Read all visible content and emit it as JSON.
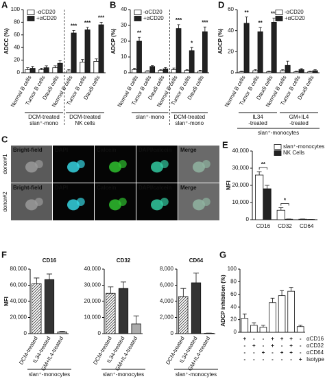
{
  "chart_data": [
    {
      "type": "bar",
      "panel": "A",
      "ylabel": "ADCC (%)",
      "ylim": [
        0,
        100
      ],
      "yticks": [
        0,
        20,
        40,
        60,
        80,
        100
      ],
      "categories": [
        "Normal B cells",
        "Tumor B cells",
        "Daudi cells",
        "Normal B cells",
        "Tumor B cells",
        "Daudi cells"
      ],
      "series": [
        {
          "name": "-αCD20",
          "color": "#ffffff",
          "values": [
            5,
            5,
            8,
            3,
            17,
            18
          ],
          "errors": [
            3,
            2,
            3,
            2,
            4,
            4
          ]
        },
        {
          "name": "+αCD20",
          "color": "#222222",
          "values": [
            7,
            8,
            15,
            63,
            68,
            76
          ],
          "errors": [
            3,
            3,
            4,
            4,
            4,
            4
          ]
        }
      ],
      "significance": [
        null,
        null,
        null,
        "***",
        "***",
        "***"
      ],
      "groups": [
        {
          "label": [
            "DCM-treated",
            "slan⁺-mono"
          ],
          "size": 3
        },
        {
          "label": [
            "DCM-treated",
            "NK cells"
          ],
          "size": 3
        }
      ],
      "separator": true
    },
    {
      "type": "bar",
      "panel": "B",
      "ylabel": "ADCP (%)",
      "ylim": [
        0,
        40
      ],
      "yticks": [
        0,
        10,
        20,
        30,
        40
      ],
      "categories": [
        "Normal B cells",
        "Tumor B cells",
        "Daudi cells",
        "Normal B cells",
        "Tumor B cells",
        "Daudi cells"
      ],
      "series": [
        {
          "name": "-αCD20",
          "color": "#ffffff",
          "values": [
            2,
            1,
            1.5,
            2,
            1.5,
            1
          ],
          "errors": [
            0.8,
            0.3,
            0.5,
            1,
            0.5,
            0.5
          ]
        },
        {
          "name": "+αCD20",
          "color": "#222222",
          "values": [
            20,
            4,
            2.5,
            28,
            14,
            26
          ],
          "errors": [
            2.5,
            0.5,
            0.8,
            2.5,
            2,
            3
          ]
        }
      ],
      "significance": [
        "**",
        null,
        null,
        "***",
        "*",
        "***"
      ],
      "groups": [
        {
          "label": [
            "slan⁺-mono"
          ],
          "size": 3
        },
        {
          "label": [
            "DCM-treated",
            "slan⁺-mono"
          ],
          "size": 3
        }
      ],
      "separator": true
    },
    {
      "type": "bar",
      "panel": "D",
      "ylabel": "ADCP (%)",
      "ylim": [
        0,
        60
      ],
      "yticks": [
        0,
        20,
        40,
        60
      ],
      "categories": [
        "Normal B cells",
        "Tumor B cells",
        "Daudi cells",
        "Normal B cells",
        "Tumor B cells",
        "Daudi cells"
      ],
      "series": [
        {
          "name": "-αCD20",
          "color": "#ffffff",
          "values": [
            1,
            2,
            1,
            2,
            1,
            1
          ],
          "errors": [
            0.5,
            1,
            0.5,
            1,
            0.5,
            0.5
          ]
        },
        {
          "name": "+αCD20",
          "color": "#222222",
          "values": [
            47,
            39,
            48,
            7,
            3,
            2
          ],
          "errors": [
            6,
            4,
            4,
            4,
            1,
            1
          ]
        }
      ],
      "significance": [
        "**",
        "**",
        "***",
        null,
        null,
        null
      ],
      "groups": [
        {
          "label": [
            "IL34",
            "-treated"
          ],
          "size": 3
        },
        {
          "label": [
            "GM+IL4",
            "-treated"
          ],
          "size": 3
        }
      ],
      "group_caption": "slan⁺-monocytes"
    },
    {
      "type": "bar",
      "panel": "E",
      "ylabel": "MFI",
      "ylim": [
        0,
        40000
      ],
      "yticks": [
        0,
        {
          "value": 10000,
          "label": "10,000"
        },
        {
          "value": 20000,
          "label": "20,000"
        },
        {
          "value": 30000,
          "label": "30,000"
        },
        {
          "value": 40000,
          "label": "40,000"
        }
      ],
      "categories": [
        "CD16",
        "CD32",
        "CD64"
      ],
      "series": [
        {
          "name": "slan⁺-monocytes",
          "color": "#ffffff",
          "values": [
            26000,
            5500,
            300
          ],
          "errors": [
            2000,
            1500,
            100
          ]
        },
        {
          "name": "NK Cells",
          "color": "#222222",
          "values": [
            18000,
            300,
            200
          ],
          "errors": [
            2000,
            100,
            50
          ]
        }
      ],
      "significance": [
        "**",
        "*",
        null
      ]
    },
    {
      "type": "bar",
      "panel": "F",
      "title": "CD16",
      "ylabel": "MFI",
      "xlabel": "slan⁺-monocytes",
      "ylim": [
        0,
        80000
      ],
      "yticks": [
        0,
        {
          "value": 20000,
          "label": "20,000"
        },
        {
          "value": 40000,
          "label": "40,000"
        },
        {
          "value": 60000,
          "label": "60,000"
        },
        {
          "value": 80000,
          "label": "80,000"
        }
      ],
      "categories": [
        "DCM-treated",
        "IL34-treated",
        "GM+IL4-treated"
      ],
      "values": [
        62000,
        67000,
        2000
      ],
      "errors": [
        7000,
        7000,
        1000
      ],
      "colors": [
        "#ffffff",
        "#333333",
        "#aaaaaa"
      ],
      "hatch": [
        true,
        false,
        false
      ]
    },
    {
      "type": "bar",
      "title": "CD32",
      "xlabel": "slan⁺-monocytes",
      "ylim": [
        0,
        40000
      ],
      "yticks": [
        0,
        {
          "value": 10000,
          "label": "10,000"
        },
        {
          "value": 20000,
          "label": "20,000"
        },
        {
          "value": 30000,
          "label": "30,000"
        },
        {
          "value": 40000,
          "label": "40,000"
        }
      ],
      "categories": [
        "DCM-treated",
        "IL34-treated",
        "GM+IL4-treated"
      ],
      "values": [
        25000,
        28000,
        6000
      ],
      "errors": [
        4000,
        4000,
        5000
      ],
      "colors": [
        "#ffffff",
        "#333333",
        "#aaaaaa"
      ],
      "hatch": [
        true,
        false,
        false
      ]
    },
    {
      "type": "bar",
      "title": "CD64",
      "xlabel": "slan⁺-monocytes",
      "ylim": [
        0,
        8000
      ],
      "yticks": [
        0,
        {
          "value": 2000,
          "label": "2,000"
        },
        {
          "value": 4000,
          "label": "4,000"
        },
        {
          "value": 6000,
          "label": "6,000"
        },
        {
          "value": 8000,
          "label": "8,000"
        }
      ],
      "categories": [
        "DCM-treated",
        "IL34-treated",
        "GM+IL4-treated"
      ],
      "values": [
        4600,
        6300,
        50
      ],
      "errors": [
        1000,
        1200,
        20
      ],
      "colors": [
        "#ffffff",
        "#333333",
        "#aaaaaa"
      ],
      "hatch": [
        true,
        false,
        false
      ]
    },
    {
      "type": "bar",
      "panel": "G",
      "ylabel": "ADCP inhibition (%)",
      "ylim": [
        0,
        100
      ],
      "yticks": [
        0,
        20,
        40,
        60,
        80,
        100
      ],
      "values": [
        22,
        11,
        8,
        47,
        58,
        65,
        9
      ],
      "errors": [
        7,
        4,
        3,
        7,
        8,
        6,
        2
      ],
      "color": "#ffffff",
      "matrix": [
        {
          "label": "αCD16",
          "marks": [
            "+",
            "-",
            "-",
            "+",
            "+",
            "+",
            "-"
          ]
        },
        {
          "label": "αCD32",
          "marks": [
            "-",
            "+",
            "-",
            "+",
            "-",
            "+",
            "-"
          ]
        },
        {
          "label": "αCD64",
          "marks": [
            "-",
            "-",
            "+",
            "-",
            "+",
            "+",
            "-"
          ]
        },
        {
          "label": "Isotype",
          "marks": [
            "-",
            "-",
            "-",
            "-",
            "-",
            "-",
            "+"
          ]
        }
      ]
    }
  ],
  "microscopy": {
    "panel": "C",
    "columns": [
      "Bright-field",
      "DAPI",
      "Calcein",
      "DAPI/calcein",
      "Merge"
    ],
    "rows": [
      "donor#1",
      "donor#2"
    ]
  }
}
